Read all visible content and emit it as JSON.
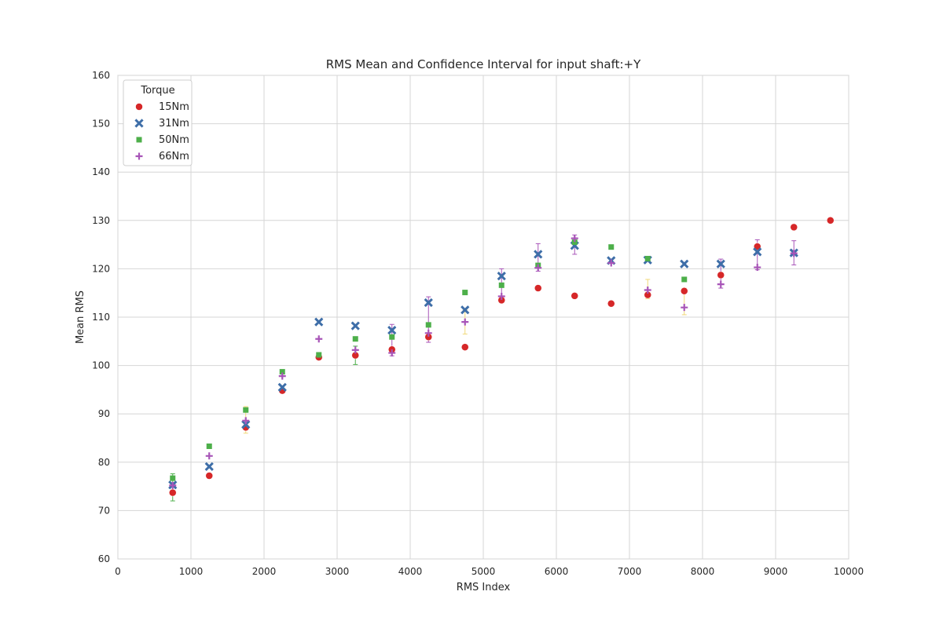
{
  "chart_data": {
    "type": "scatter",
    "title": "RMS Mean and Confidence Interval for input shaft:+Y",
    "xlabel": "RMS Index",
    "ylabel": "Mean RMS",
    "xlim": [
      0,
      10000
    ],
    "ylim": [
      60,
      160
    ],
    "xticks": [
      "0",
      "1000",
      "2000",
      "3000",
      "4000",
      "5000",
      "6000",
      "7000",
      "8000",
      "9000",
      "10000"
    ],
    "yticks": [
      "60",
      "70",
      "80",
      "90",
      "100",
      "110",
      "120",
      "130",
      "140",
      "150",
      "160"
    ],
    "grid": true,
    "legend": {
      "title": "Torque",
      "position": "top-left",
      "entries": [
        "15Nm",
        "31Nm",
        "50Nm",
        "66Nm"
      ]
    },
    "series": [
      {
        "name": "15Nm",
        "marker": "circle",
        "color": "#d62728",
        "points": [
          [
            750,
            73.7
          ],
          [
            1250,
            77.2
          ],
          [
            1750,
            87.2
          ],
          [
            2250,
            94.8
          ],
          [
            2750,
            101.7
          ],
          [
            3250,
            102.1
          ],
          [
            3750,
            103.3
          ],
          [
            4250,
            105.9
          ],
          [
            4750,
            103.8
          ],
          [
            5250,
            113.5
          ],
          [
            5750,
            116.0
          ],
          [
            6250,
            114.4
          ],
          [
            6750,
            112.8
          ],
          [
            7250,
            114.6
          ],
          [
            7750,
            115.4
          ],
          [
            8250,
            118.7
          ],
          [
            8750,
            124.6
          ],
          [
            9250,
            128.6
          ],
          [
            9750,
            130.0
          ]
        ]
      },
      {
        "name": "31Nm",
        "marker": "x",
        "color": "#3e6ea8",
        "points": [
          [
            750,
            75.3
          ],
          [
            1250,
            79.1
          ],
          [
            1750,
            87.8
          ],
          [
            2250,
            95.5
          ],
          [
            2750,
            109.0
          ],
          [
            3250,
            108.2
          ],
          [
            3750,
            107.3
          ],
          [
            4250,
            113.0
          ],
          [
            4750,
            111.5
          ],
          [
            5250,
            118.5
          ],
          [
            5750,
            123.0
          ],
          [
            6250,
            124.8
          ],
          [
            6750,
            121.7
          ],
          [
            7250,
            121.8
          ],
          [
            7750,
            121.0
          ],
          [
            8250,
            121.0
          ],
          [
            8750,
            123.5
          ],
          [
            9250,
            123.3
          ]
        ]
      },
      {
        "name": "50Nm",
        "marker": "square",
        "color": "#4daf4a",
        "points": [
          [
            750,
            76.7
          ],
          [
            1250,
            83.3
          ],
          [
            1750,
            90.8
          ],
          [
            2250,
            98.7
          ],
          [
            2750,
            102.2
          ],
          [
            3250,
            105.5
          ],
          [
            3750,
            105.9
          ],
          [
            4250,
            108.4
          ],
          [
            4750,
            115.1
          ],
          [
            5250,
            116.6
          ],
          [
            5750,
            120.7
          ],
          [
            6250,
            125.5
          ],
          [
            6750,
            124.5
          ],
          [
            7250,
            122.1
          ],
          [
            7750,
            117.8
          ]
        ]
      },
      {
        "name": "66Nm",
        "marker": "plus",
        "color": "#a855b8",
        "points": [
          [
            750,
            75.2
          ],
          [
            1250,
            81.3
          ],
          [
            1750,
            88.6
          ],
          [
            2250,
            97.8
          ],
          [
            2750,
            105.5
          ],
          [
            3250,
            103.2
          ],
          [
            3750,
            102.6
          ],
          [
            4250,
            106.7
          ],
          [
            4750,
            109.0
          ],
          [
            5250,
            114.3
          ],
          [
            5750,
            120.2
          ],
          [
            6250,
            126.3
          ],
          [
            6750,
            121.2
          ],
          [
            7250,
            115.6
          ],
          [
            7750,
            112.0
          ],
          [
            8250,
            116.8
          ],
          [
            8750,
            120.3
          ],
          [
            9250,
            123.2
          ]
        ]
      }
    ],
    "error_bars": [
      {
        "x": 750,
        "low": 72.0,
        "high": 77.6,
        "color": "#4daf4a"
      },
      {
        "x": 1750,
        "low": 86.0,
        "high": 91.5,
        "color": "#f0d878"
      },
      {
        "x": 3250,
        "low": 100.2,
        "high": 104.0,
        "color": "#4daf4a"
      },
      {
        "x": 3750,
        "low": 102.0,
        "high": 108.5,
        "color": "#a855b8"
      },
      {
        "x": 4250,
        "low": 104.8,
        "high": 114.2,
        "color": "#a855b8"
      },
      {
        "x": 4750,
        "low": 106.5,
        "high": 111.5,
        "color": "#f0d878"
      },
      {
        "x": 5250,
        "low": 113.0,
        "high": 120.0,
        "color": "#a855b8"
      },
      {
        "x": 5750,
        "low": 119.5,
        "high": 125.2,
        "color": "#a855b8"
      },
      {
        "x": 6250,
        "low": 123.0,
        "high": 127.0,
        "color": "#a855b8"
      },
      {
        "x": 7250,
        "low": 113.8,
        "high": 117.8,
        "color": "#f0d878"
      },
      {
        "x": 7750,
        "low": 110.5,
        "high": 116.0,
        "color": "#f0d878"
      },
      {
        "x": 8250,
        "low": 116.0,
        "high": 122.0,
        "color": "#a855b8"
      },
      {
        "x": 8750,
        "low": 119.8,
        "high": 126.0,
        "color": "#a855b8"
      },
      {
        "x": 9250,
        "low": 120.8,
        "high": 125.8,
        "color": "#a855b8"
      }
    ]
  },
  "colors": {
    "grid": "#d6d6d6",
    "frame": "#cccccc"
  }
}
